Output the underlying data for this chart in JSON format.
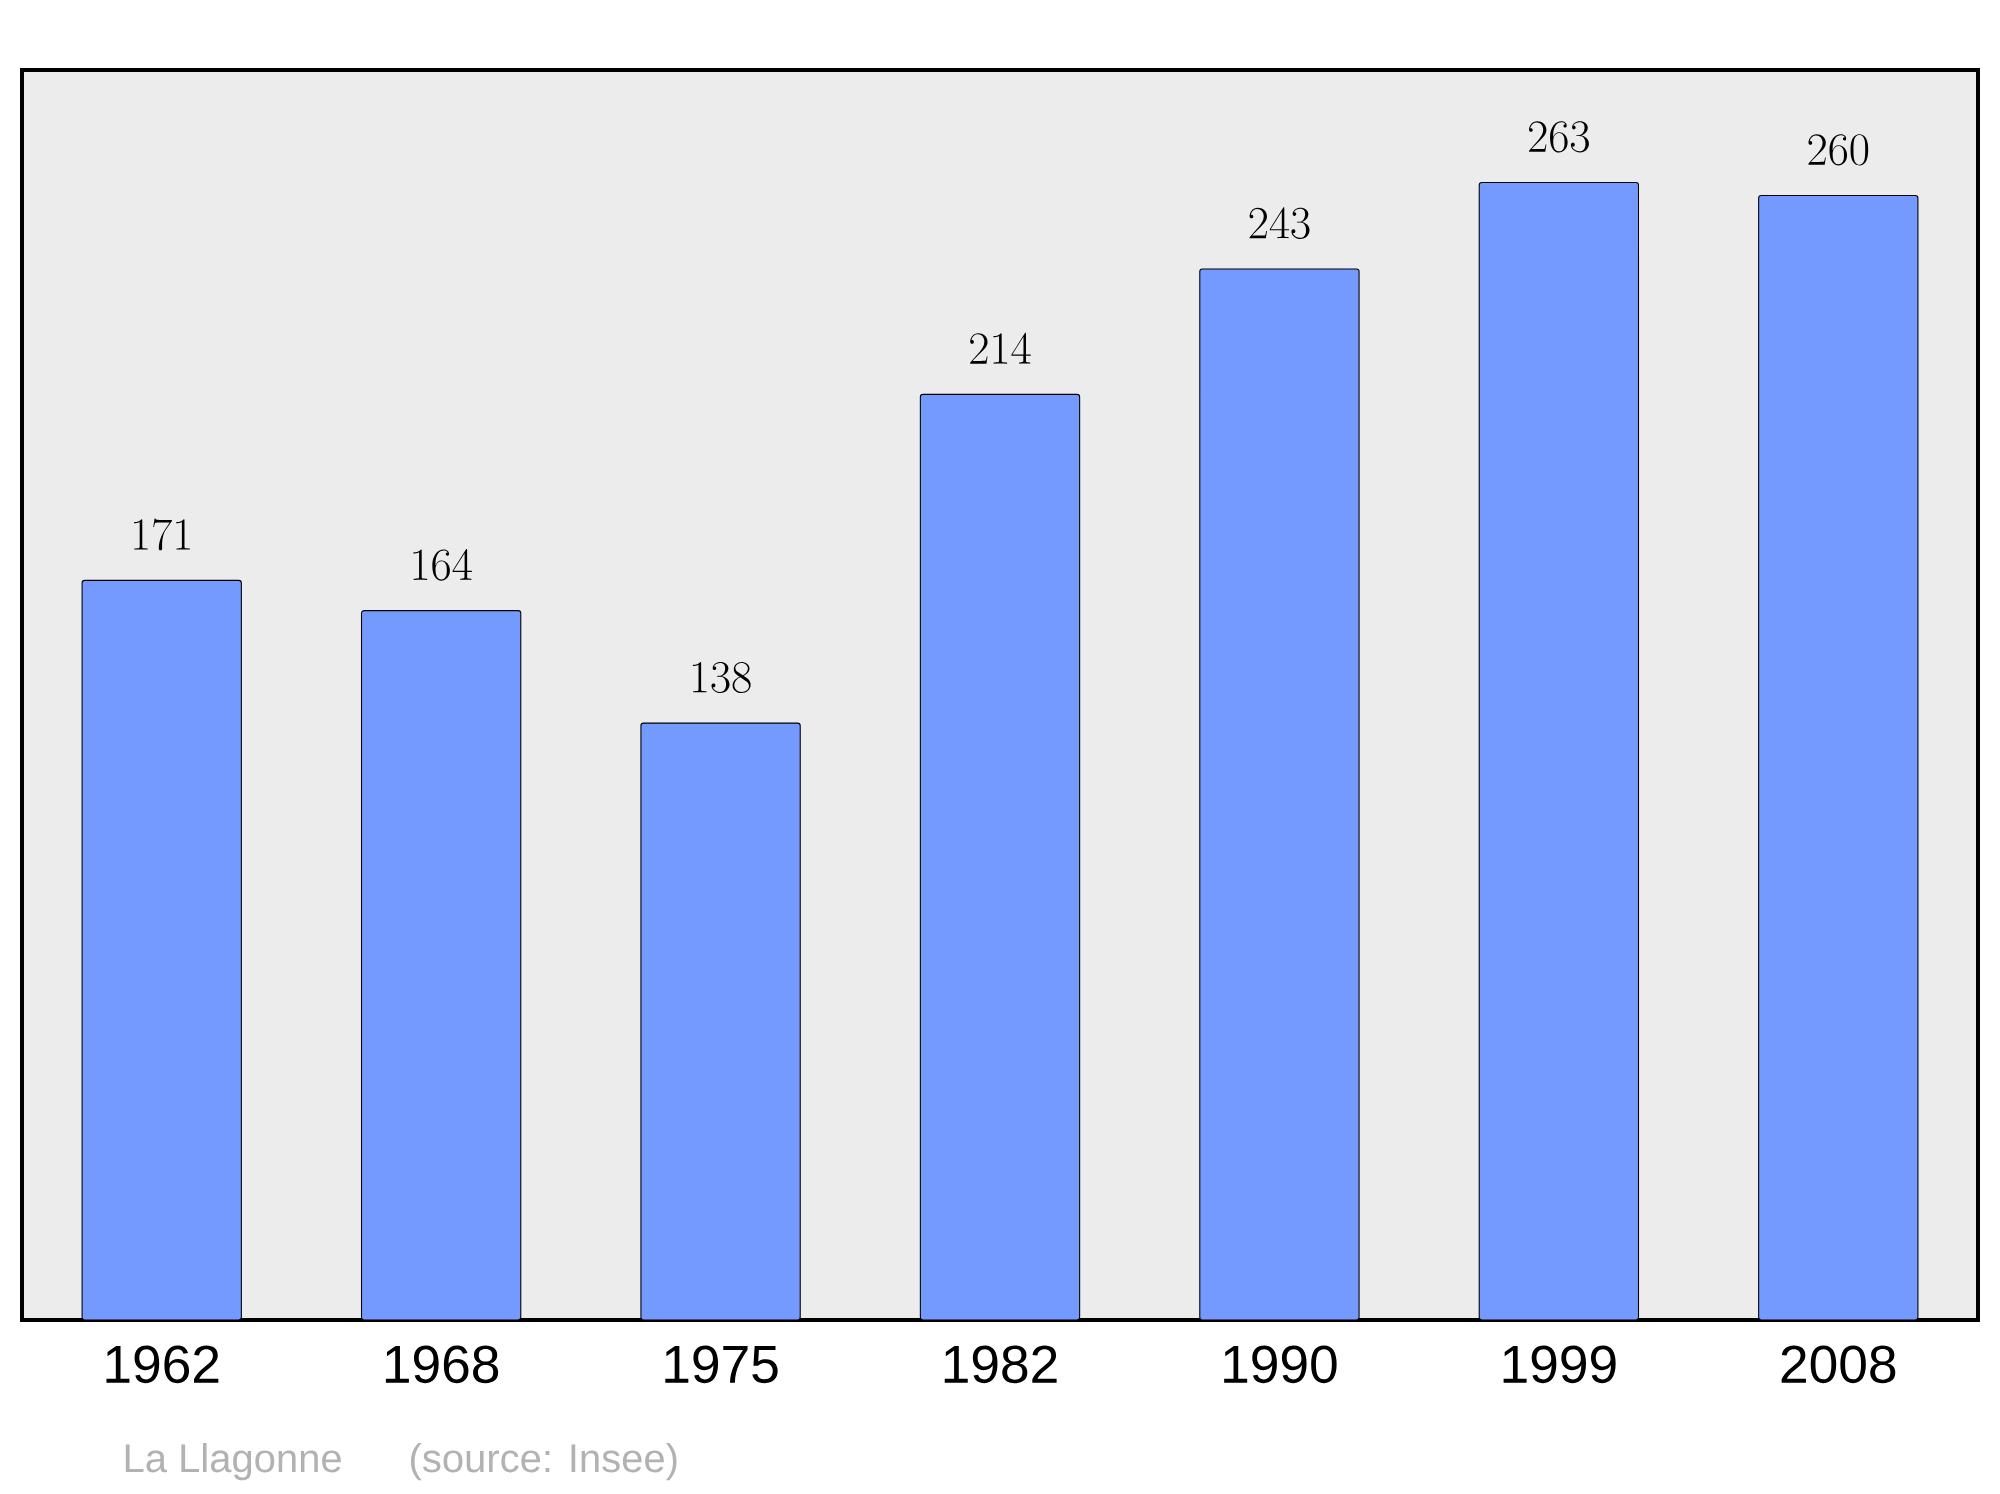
{
  "chart_data": {
    "type": "bar",
    "categories": [
      "1962",
      "1968",
      "1975",
      "1982",
      "1990",
      "1999",
      "2008"
    ],
    "values": [
      171,
      164,
      138,
      214,
      243,
      263,
      260
    ],
    "color": "#7499ff",
    "ylim": [
      0,
      289
    ],
    "data_labels": true,
    "tick_labels": "x",
    "annotations": [
      "La Llagonne",
      "(source: Insee)"
    ]
  }
}
